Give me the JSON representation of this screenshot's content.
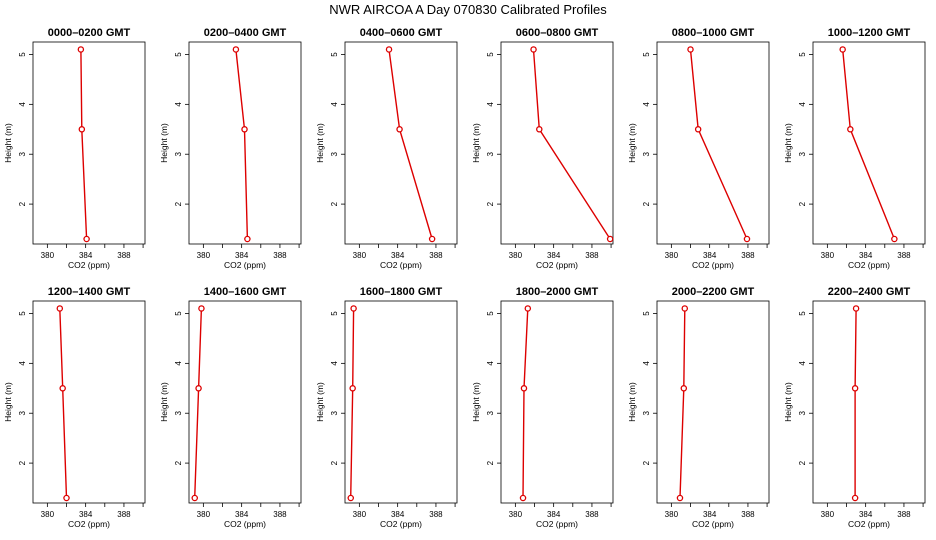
{
  "page": {
    "title": "NWR AIRCOA A  Day 070830  Calibrated Profiles"
  },
  "chart_data": {
    "type": "line",
    "xlabel": "CO2 (ppm)",
    "ylabel": "Height (m)",
    "xlim": [
      378.5,
      390.2
    ],
    "ylim": [
      1.2,
      5.25
    ],
    "x_ticks": [
      380,
      384,
      388
    ],
    "y_ticks": [
      2,
      3,
      4,
      5
    ],
    "heights": [
      5.1,
      3.5,
      1.3
    ],
    "series_color": "#dd0000",
    "panels": [
      {
        "title": "0000–0200 GMT",
        "co2": [
          383.5,
          383.6,
          384.1
        ]
      },
      {
        "title": "0200–0400 GMT",
        "co2": [
          383.4,
          384.3,
          384.6
        ]
      },
      {
        "title": "0400–0600 GMT",
        "co2": [
          383.1,
          384.2,
          387.6
        ]
      },
      {
        "title": "0600–0800 GMT",
        "co2": [
          381.9,
          382.5,
          389.9
        ]
      },
      {
        "title": "0800–1000 GMT",
        "co2": [
          382.0,
          382.8,
          387.9
        ]
      },
      {
        "title": "1000–1200 GMT",
        "co2": [
          381.6,
          382.4,
          387.0
        ]
      },
      {
        "title": "1200–1400 GMT",
        "co2": [
          381.3,
          381.6,
          382.0
        ]
      },
      {
        "title": "1400–1600 GMT",
        "co2": [
          379.8,
          379.5,
          379.1
        ]
      },
      {
        "title": "1600–1800 GMT",
        "co2": [
          379.4,
          379.3,
          379.1
        ]
      },
      {
        "title": "1800–2000 GMT",
        "co2": [
          381.3,
          380.9,
          380.8
        ]
      },
      {
        "title": "2000–2200 GMT",
        "co2": [
          381.4,
          381.3,
          380.9
        ]
      },
      {
        "title": "2200–2400 GMT",
        "co2": [
          383.0,
          382.9,
          382.9
        ]
      }
    ]
  }
}
